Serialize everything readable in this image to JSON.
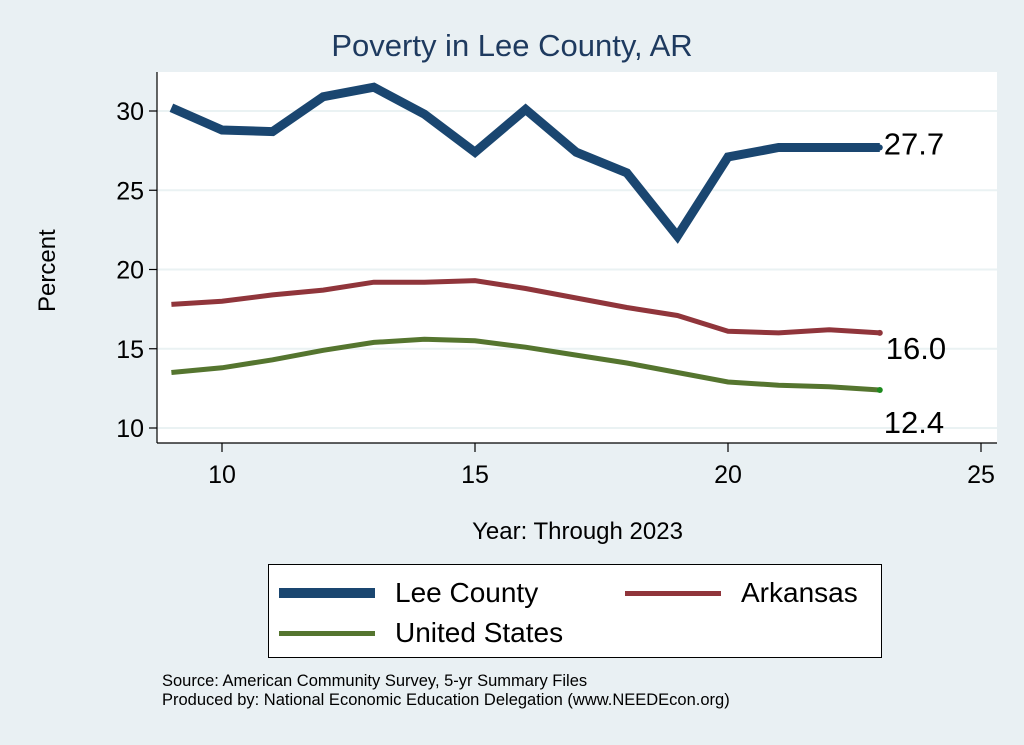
{
  "chart_data": {
    "type": "line",
    "title": "Poverty in Lee County, AR",
    "xlabel": "Year: Through 2023",
    "ylabel": "Percent",
    "xlim": [
      8.7,
      25.3
    ],
    "ylim": [
      9.1,
      32.5
    ],
    "xticks": [
      10,
      15,
      20,
      25
    ],
    "yticks": [
      10,
      15,
      20,
      25,
      30
    ],
    "grid": true,
    "legend_position": "bottom",
    "x": [
      9,
      10,
      11,
      12,
      13,
      14,
      15,
      16,
      17,
      18,
      19,
      20,
      21,
      22,
      23
    ],
    "series": [
      {
        "name": "Lee County",
        "color": "#1a4670",
        "width": 9,
        "values": [
          30.2,
          28.8,
          28.7,
          30.9,
          31.5,
          29.8,
          27.4,
          30.1,
          27.4,
          26.1,
          22.1,
          27.1,
          27.7,
          27.7,
          27.7
        ],
        "end_label": "27.7"
      },
      {
        "name": "Arkansas",
        "color": "#90353b",
        "width": 5,
        "values": [
          17.8,
          18.0,
          18.4,
          18.7,
          19.2,
          19.2,
          19.3,
          18.8,
          18.2,
          17.6,
          17.1,
          16.1,
          16.0,
          16.2,
          16.0
        ],
        "end_label": "16.0"
      },
      {
        "name": "United States",
        "color": "#55752f",
        "width": 5,
        "values": [
          13.5,
          13.8,
          14.3,
          14.9,
          15.4,
          15.6,
          15.5,
          15.1,
          14.6,
          14.1,
          13.5,
          12.9,
          12.7,
          12.6,
          12.4
        ],
        "end_label": "12.4"
      }
    ]
  },
  "source_note": "Source: American Community Survey, 5-yr Summary Files",
  "produced_note": "Produced by: National Economic Education Delegation (www.NEEDEcon.org)"
}
